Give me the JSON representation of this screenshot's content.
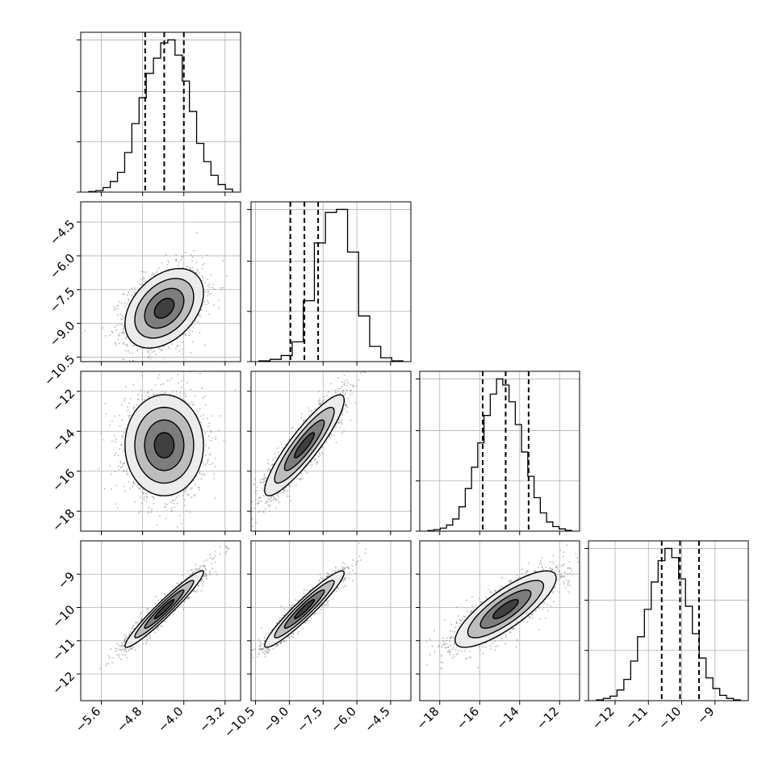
{
  "chart_data": {
    "type": "corner",
    "parameters": [
      {
        "range": [
          -6.0,
          -2.9
        ],
        "ticks": [
          -5.6,
          -4.8,
          -4.0,
          -3.2
        ],
        "tick_labels": [
          "−5.6",
          "−4.8",
          "−4.0",
          "−3.2"
        ],
        "quantiles": [
          -4.75,
          -4.38,
          -4.0
        ],
        "histogram": [
          0.4,
          1,
          3,
          7,
          13,
          26,
          45,
          62,
          78,
          88,
          98,
          100,
          90,
          73,
          53,
          32,
          20,
          11,
          5,
          2
        ]
      },
      {
        "range": [
          -10.7,
          -3.6
        ],
        "ticks": [
          -10.5,
          -9.0,
          -7.5,
          -6.0,
          -4.5
        ],
        "tick_labels": [
          "−10.5",
          "−9.0",
          "−7.5",
          "−6.0",
          "−4.5"
        ],
        "quantiles": [
          -8.95,
          -8.33,
          -7.72
        ],
        "histogram": [
          0.5,
          1.5,
          4,
          13,
          40,
          78,
          98,
          100,
          72,
          30,
          10,
          2.5,
          0.5
        ]
      },
      {
        "range": [
          -19.0,
          -11.0
        ],
        "ticks": [
          -18,
          -16,
          -14,
          -12
        ],
        "tick_labels": [
          "−18",
          "−16",
          "−14",
          "−12"
        ],
        "quantiles": [
          -15.85,
          -14.7,
          -13.55
        ],
        "histogram": [
          0.4,
          1,
          2,
          4,
          8,
          16,
          28,
          42,
          58,
          76,
          90,
          100,
          96,
          85,
          70,
          52,
          36,
          22,
          12,
          6,
          3,
          1.5,
          0.5
        ]
      },
      {
        "range": [
          -12.8,
          -8.0
        ],
        "ticks": [
          -12,
          -11,
          -10,
          -9
        ],
        "tick_labels": [
          "−12",
          "−11",
          "−10",
          "−9"
        ],
        "quantiles": [
          -10.6,
          -10.05,
          -9.48
        ],
        "histogram": [
          0.5,
          1.5,
          3,
          7,
          14,
          26,
          42,
          60,
          78,
          92,
          100,
          94,
          80,
          62,
          44,
          28,
          15,
          8,
          3.5,
          1.5,
          0.5
        ]
      }
    ],
    "covariance": [
      [
        0.145,
        0.13,
        0.0,
        0.21
      ],
      [
        0.13,
        0.78,
        1.0,
        0.48
      ],
      [
        0.0,
        1.0,
        1.6,
        0.59
      ],
      [
        0.21,
        0.48,
        0.59,
        0.33
      ]
    ],
    "means": [
      -4.38,
      -8.33,
      -14.7,
      -10.05
    ],
    "contour_levels_sigma": [
      0.5,
      1.0,
      1.5,
      2.0
    ],
    "grid": true
  }
}
